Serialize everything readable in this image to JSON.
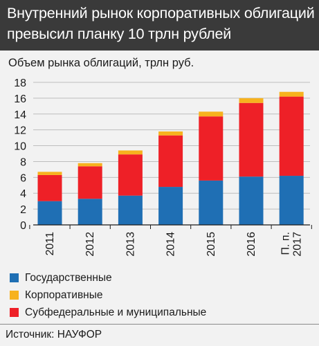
{
  "header": {
    "title_line1": "Внутренний рынок корпоративных облигаций",
    "title_line2": "превысил планку 10 трлн рублей"
  },
  "subtitle": "Объем рынка облигаций, трлн руб.",
  "colors": {
    "header_bg": "#3a3a3a",
    "background": "#f2f2f2",
    "state": "#1f6fb4",
    "corporate": "#f7b21e",
    "subfederal": "#ee2027"
  },
  "chart_data": {
    "type": "bar",
    "stacked": true,
    "categories": [
      [
        "2011"
      ],
      [
        "2012"
      ],
      [
        "2013"
      ],
      [
        "2014"
      ],
      [
        "2015"
      ],
      [
        "2016"
      ],
      [
        "П. п.",
        "2017"
      ]
    ],
    "series": [
      {
        "name": "Государственные",
        "color": "#1f6fb4",
        "values": [
          3.0,
          3.3,
          3.7,
          4.8,
          5.6,
          6.1,
          6.2
        ]
      },
      {
        "name": "Субфедеральные и муниципальные",
        "color": "#ee2027",
        "values": [
          3.3,
          4.1,
          5.2,
          6.5,
          8.1,
          9.3,
          10.0
        ]
      },
      {
        "name": "Корпоративные",
        "color": "#f7b21e",
        "values": [
          0.4,
          0.4,
          0.5,
          0.5,
          0.6,
          0.6,
          0.6
        ]
      }
    ],
    "ylim": [
      0,
      18
    ],
    "yticks": [
      "0",
      "2",
      "4",
      "6",
      "8",
      "10",
      "12",
      "14",
      "16",
      "18"
    ],
    "grid": true,
    "xlabel": "",
    "ylabel": ""
  },
  "legend": [
    {
      "label": "Государственные",
      "color": "#1f6fb4"
    },
    {
      "label": "Корпоративные",
      "color": "#f7b21e"
    },
    {
      "label": "Субфедеральные и муниципальные",
      "color": "#ee2027"
    }
  ],
  "footer": {
    "source": "Источник: НАУФОР"
  }
}
